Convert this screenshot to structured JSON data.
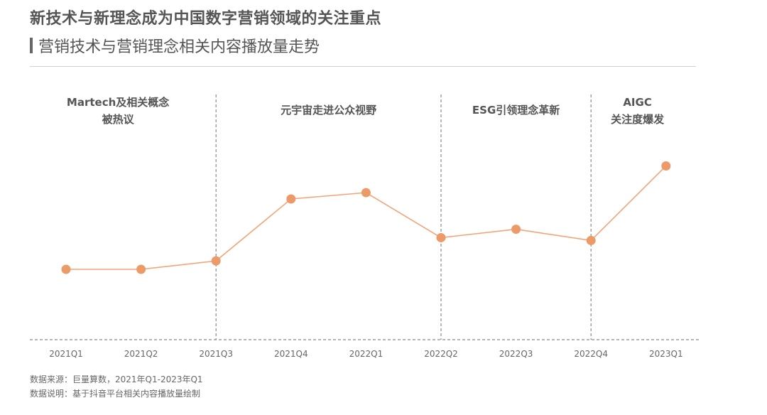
{
  "header": {
    "title": "新技术与新理念成为中国数字营销领域的关注重点",
    "subtitle": "营销技术与营销理念相关内容播放量走势"
  },
  "chart_data": {
    "type": "line",
    "categories": [
      "2021Q1",
      "2021Q2",
      "2021Q3",
      "2021Q4",
      "2022Q1",
      "2022Q2",
      "2022Q3",
      "2022Q4",
      "2023Q1"
    ],
    "series": [
      {
        "values": [
          1.0,
          1.0,
          1.12,
          2.0,
          2.09,
          1.45,
          1.57,
          1.41,
          2.47
        ]
      }
    ],
    "y_unit": "relative (no axis printed)",
    "ylim": [
      0,
      2.9
    ],
    "grid": false,
    "line_color": "#f2a477",
    "marker_color": "#ec9a67",
    "dividers_after_category": [
      "2021Q3",
      "2022Q2",
      "2022Q4"
    ],
    "phases": [
      {
        "lines": [
          "Martech及相关概念",
          "被热议"
        ]
      },
      {
        "lines": [
          "元宇宙走进公众视野"
        ]
      },
      {
        "lines": [
          "ESG引领理念革新"
        ]
      },
      {
        "lines": [
          "AIGC",
          "关注度爆发"
        ]
      }
    ]
  },
  "footnotes": {
    "source": "数据来源：巨量算数，2021年Q1-2023年Q1",
    "note": "数据说明：基于抖音平台相关内容播放量绘制"
  }
}
